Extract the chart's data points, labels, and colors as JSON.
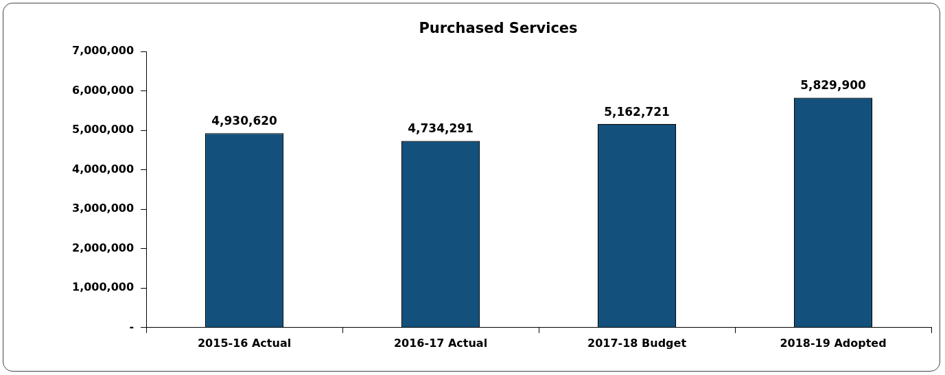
{
  "chart_data": {
    "type": "bar",
    "title": "Purchased Services",
    "categories": [
      "2015-16 Actual",
      "2016-17 Actual",
      "2017-18 Budget",
      "2018-19 Adopted"
    ],
    "values": [
      4930620,
      4734291,
      5162721,
      5829900
    ],
    "color": "#13517c",
    "ylim": [
      0,
      7000000
    ],
    "yticks": [
      {
        "value": 0,
        "label": "-"
      },
      {
        "value": 1000000,
        "label": "1,000,000"
      },
      {
        "value": 2000000,
        "label": "2,000,000"
      },
      {
        "value": 3000000,
        "label": "3,000,000"
      },
      {
        "value": 4000000,
        "label": "4,000,000"
      },
      {
        "value": 5000000,
        "label": "5,000,000"
      },
      {
        "value": 6000000,
        "label": "6,000,000"
      },
      {
        "value": 7000000,
        "label": "7,000,000"
      }
    ],
    "grid": false,
    "legend": false,
    "value_labels": [
      "4,930,620",
      "4,734,291",
      "5,162,721",
      "5,829,900"
    ]
  }
}
